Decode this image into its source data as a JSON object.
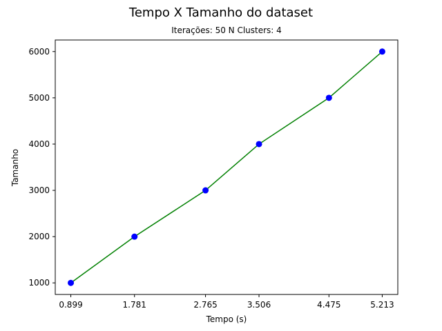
{
  "chart_data": {
    "type": "line",
    "title": "Tempo X Tamanho do dataset",
    "subtitle": "Iterações: 50  N Clusters: 4",
    "xlabel": "Tempo (s)",
    "ylabel": "Tamanho",
    "x": [
      0.899,
      1.781,
      2.765,
      3.506,
      4.475,
      5.213
    ],
    "x_tick_labels": [
      "0.899",
      "1.781",
      "2.765",
      "3.506",
      "4.475",
      "5.213"
    ],
    "series": [
      {
        "values": [
          1000,
          2000,
          3000,
          4000,
          5000,
          6000
        ]
      }
    ],
    "y_ticks": [
      1000,
      2000,
      3000,
      4000,
      5000,
      6000
    ],
    "xlim": [
      0.6833,
      5.4287
    ],
    "ylim": [
      750,
      6250
    ],
    "grid": false,
    "colors": {
      "line": "#008000",
      "marker": "#0000ff"
    }
  }
}
